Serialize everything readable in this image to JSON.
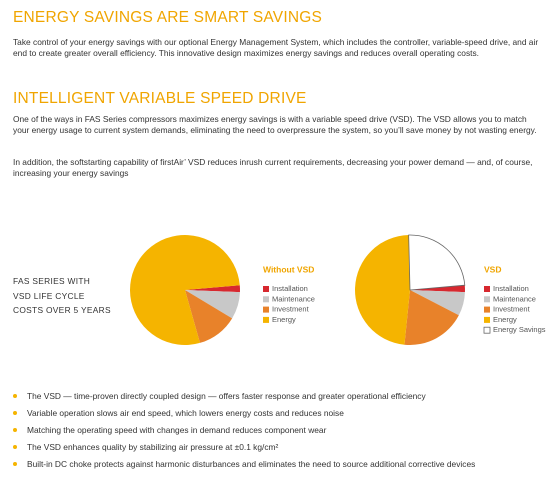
{
  "sections": [
    {
      "heading": "ENERGY SAVINGS ARE SMART SAVINGS",
      "paragraphs": [
        "Take control of your energy savings with our optional Energy Management System, which includes the controller, variable-speed drive, and air end to create greater overall efficiency. This innovative design maximizes energy savings and reduces overall operating costs."
      ]
    },
    {
      "heading": "INTELLIGENT VARIABLE SPEED DRIVE",
      "paragraphs": [
        "One of the ways in FAS Series compressors maximizes energy savings is with a variable speed drive (VSD). The VSD allows you to match your energy usage to current system demands, eliminating the need to overpressure the system, so you’ll save money by not wasting energy.",
        "In addition, the softstarting capability of firstAir’ VSD reduces inrush current requirements, decreasing your power demand — and, of course, increasing your energy savings"
      ]
    }
  ],
  "chart_caption": [
    "FAS SERIES WITH",
    "VSD LIFE CYCLE",
    "COSTS OVER 5 YEARS"
  ],
  "chart_data": [
    {
      "type": "pie",
      "title": "Without VSD",
      "categories": [
        "Installation",
        "Maintenance",
        "Investment",
        "Energy"
      ],
      "values": [
        2,
        8,
        12,
        78
      ],
      "colors": [
        "#d7282f",
        "#c8c8c8",
        "#e8822a",
        "#f5b400"
      ]
    },
    {
      "type": "pie",
      "title": "VSD",
      "categories": [
        "Installation",
        "Maintenance",
        "Investment",
        "Energy",
        "Energy Savings"
      ],
      "values": [
        2,
        7,
        19,
        48,
        24
      ],
      "colors": [
        "#d7282f",
        "#c8c8c8",
        "#e8822a",
        "#f5b400",
        "#ffffff"
      ]
    }
  ],
  "bullets": [
    "The VSD — time-proven directly coupled design — offers faster response and greater operational efficiency",
    "Variable operation slows air end speed, which lowers energy costs and reduces noise",
    "Matching the operating speed with changes in demand reduces component wear",
    "The VSD enhances quality by stabilizing air pressure at ±0.1 kg/cm²",
    "Built-in DC choke protects against harmonic disturbances and eliminates the need to source additional corrective devices"
  ]
}
